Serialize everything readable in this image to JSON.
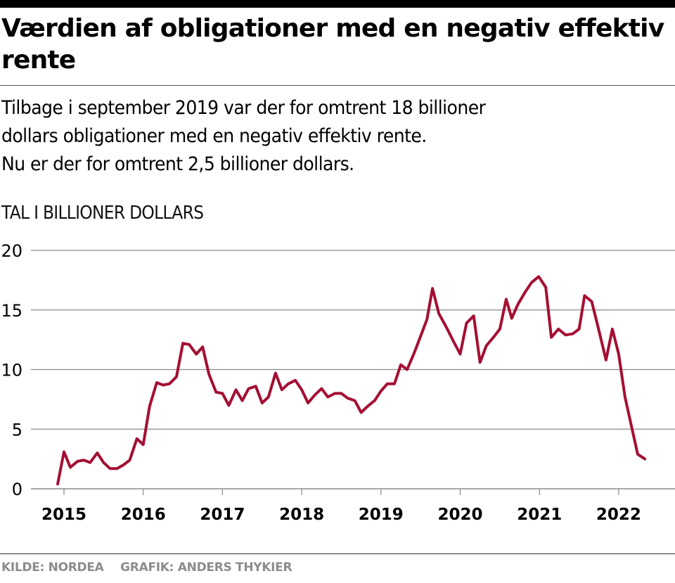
{
  "header": {
    "title": "Værdien af obligationer med en negativ effektiv rente",
    "subtitle_lines": [
      "Tilbage i september 2019 var der for omtrent 18 billioner",
      "dollars obligationer med en negativ effektiv rente.",
      "Nu er der for omtrent 2,5 billioner dollars."
    ],
    "unit_label": "TAL I BILLIONER DOLLARS"
  },
  "footer": {
    "source": "KILDE: NORDEA",
    "credit": "GRAFIK: ANDERS THYKIER"
  },
  "colors": {
    "line": "#a50f33",
    "grid": "#8a8a8a",
    "footer_text": "#8c8c8c"
  },
  "chart_data": {
    "type": "line",
    "title": "Værdien af obligationer med en negativ effektiv rente",
    "xlabel": "",
    "ylabel": "TAL I BILLIONER DOLLARS",
    "ylim": [
      0,
      20
    ],
    "xlim": [
      2014.9,
      2022.6
    ],
    "yticks": [
      0,
      5,
      10,
      15,
      20
    ],
    "xticks": [
      2015,
      2016,
      2017,
      2018,
      2019,
      2020,
      2021,
      2022
    ],
    "xtick_labels": [
      "2015",
      "2016",
      "2017",
      "2018",
      "2019",
      "2020",
      "2021",
      "2022"
    ],
    "ytick_labels": [
      "0",
      "5",
      "10",
      "15",
      "20"
    ],
    "grid": "horizontal",
    "legend": "none",
    "series": [
      {
        "name": "Obligationer med negativ effektiv rente",
        "x": [
          2014.92,
          2015.0,
          2015.08,
          2015.17,
          2015.25,
          2015.33,
          2015.42,
          2015.5,
          2015.58,
          2015.67,
          2015.75,
          2015.83,
          2015.92,
          2016.0,
          2016.08,
          2016.17,
          2016.25,
          2016.33,
          2016.42,
          2016.5,
          2016.58,
          2016.67,
          2016.75,
          2016.83,
          2016.92,
          2017.0,
          2017.08,
          2017.17,
          2017.25,
          2017.33,
          2017.42,
          2017.5,
          2017.58,
          2017.67,
          2017.75,
          2017.83,
          2017.92,
          2018.0,
          2018.08,
          2018.17,
          2018.25,
          2018.33,
          2018.42,
          2018.5,
          2018.58,
          2018.67,
          2018.75,
          2018.83,
          2018.92,
          2019.0,
          2019.08,
          2019.17,
          2019.25,
          2019.33,
          2019.42,
          2019.5,
          2019.58,
          2019.65,
          2019.73,
          2019.83,
          2019.92,
          2020.0,
          2020.08,
          2020.17,
          2020.25,
          2020.33,
          2020.42,
          2020.5,
          2020.58,
          2020.65,
          2020.73,
          2020.82,
          2020.9,
          2020.99,
          2021.08,
          2021.15,
          2021.24,
          2021.33,
          2021.42,
          2021.5,
          2021.57,
          2021.66,
          2021.75,
          2021.84,
          2021.92,
          2022.0,
          2022.08,
          2022.16,
          2022.24,
          2022.33
        ],
        "values": [
          0.4,
          3.1,
          1.8,
          2.3,
          2.4,
          2.2,
          3.0,
          2.2,
          1.7,
          1.7,
          2.0,
          2.4,
          4.2,
          3.7,
          6.9,
          8.9,
          8.7,
          8.8,
          9.4,
          12.2,
          12.1,
          11.3,
          11.9,
          9.6,
          8.1,
          8.0,
          7.0,
          8.3,
          7.4,
          8.4,
          8.6,
          7.2,
          7.7,
          9.7,
          8.3,
          8.8,
          9.1,
          8.3,
          7.2,
          7.9,
          8.4,
          7.7,
          8.0,
          8.0,
          7.6,
          7.4,
          6.4,
          6.9,
          7.4,
          8.2,
          8.8,
          8.8,
          10.4,
          10.0,
          11.4,
          12.8,
          14.2,
          16.8,
          14.7,
          13.5,
          12.3,
          11.3,
          13.9,
          14.5,
          10.6,
          12.0,
          12.7,
          13.4,
          15.9,
          14.3,
          15.5,
          16.5,
          17.3,
          17.8,
          16.9,
          12.7,
          13.4,
          12.9,
          13.0,
          13.4,
          16.2,
          15.7,
          13.3,
          10.8,
          13.4,
          11.3,
          7.7,
          5.3,
          2.9,
          2.5
        ]
      }
    ]
  }
}
